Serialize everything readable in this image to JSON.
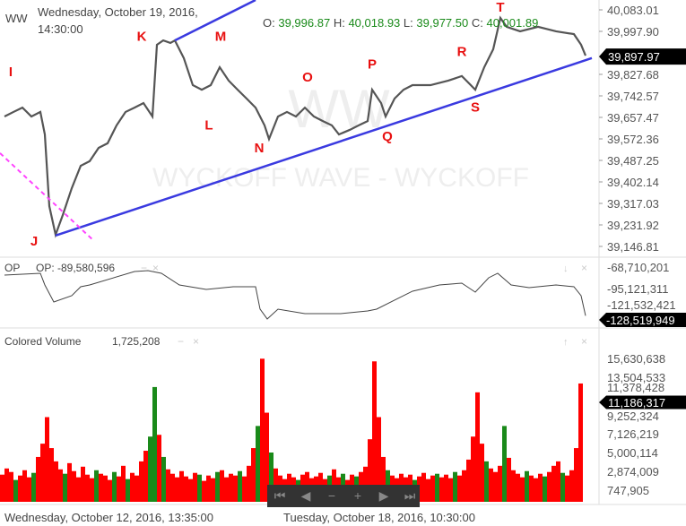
{
  "header": {
    "symbol": "WW",
    "date": "Wednesday, October 19, 2016,",
    "time": "14:30:00",
    "o_label": "O:",
    "o": "39,996.87",
    "h_label": "H:",
    "h": "40,018.93",
    "l_label": "L:",
    "l": "39,977.50",
    "c_label": "C:",
    "c": "40,001.89"
  },
  "watermark": {
    "big": "WW",
    "text": "WYCKOFF WAVE - WYCKOFF"
  },
  "colors": {
    "price": "#555555",
    "trend": "#3a3ae0",
    "dashed": "#ff44ff",
    "label": "#e81010",
    "up": "#1a8a1a",
    "down": "#ff0000",
    "values": "#1a8a1a"
  },
  "chart_data": [
    {
      "type": "line",
      "name": "WW",
      "ylim": [
        39146.81,
        40083.01
      ],
      "yticks": [
        "40,083.01",
        "39,997.90",
        "39,827.68",
        "39,742.57",
        "39,657.47",
        "39,572.36",
        "39,487.25",
        "39,402.14",
        "39,317.03",
        "39,231.92",
        "39,146.81"
      ],
      "last": "39,897.97",
      "points": [
        [
          1,
          39661
        ],
        [
          3,
          39679
        ],
        [
          5,
          39696
        ],
        [
          7,
          39661
        ],
        [
          9,
          39679
        ],
        [
          10,
          39590
        ],
        [
          11,
          39306
        ],
        [
          12.4,
          39193
        ],
        [
          14,
          39271
        ],
        [
          16,
          39377
        ],
        [
          18,
          39466
        ],
        [
          20,
          39484
        ],
        [
          22,
          39537
        ],
        [
          24,
          39555
        ],
        [
          26,
          39626
        ],
        [
          28,
          39679
        ],
        [
          30,
          39696
        ],
        [
          32,
          39714
        ],
        [
          34,
          39661
        ],
        [
          35,
          39945
        ],
        [
          36.4,
          39962
        ],
        [
          38,
          39952
        ],
        [
          39,
          39962
        ],
        [
          41,
          39892
        ],
        [
          43,
          39785
        ],
        [
          45,
          39767
        ],
        [
          47,
          39785
        ],
        [
          49,
          39856
        ],
        [
          51,
          39803
        ],
        [
          53,
          39767
        ],
        [
          55,
          39732
        ],
        [
          57,
          39696
        ],
        [
          59,
          39626
        ],
        [
          60,
          39572
        ],
        [
          62,
          39661
        ],
        [
          64,
          39679
        ],
        [
          66,
          39661
        ],
        [
          68,
          39696
        ],
        [
          70,
          39661
        ],
        [
          72,
          39643
        ],
        [
          74,
          39626
        ],
        [
          75.6,
          39590
        ],
        [
          78,
          39608
        ],
        [
          80,
          39626
        ],
        [
          82,
          39643
        ],
        [
          83,
          39767
        ],
        [
          85,
          39714
        ],
        [
          86,
          39661
        ],
        [
          88,
          39732
        ],
        [
          90,
          39767
        ],
        [
          92,
          39785
        ],
        [
          96,
          39785
        ],
        [
          100,
          39803
        ],
        [
          103,
          39821
        ],
        [
          105,
          39785
        ],
        [
          106,
          39767
        ],
        [
          108,
          39856
        ],
        [
          110,
          39927
        ],
        [
          111.6,
          40051
        ],
        [
          113,
          40016
        ],
        [
          116,
          39998
        ],
        [
          120,
          40016
        ],
        [
          124,
          39998
        ],
        [
          128,
          39987
        ],
        [
          129.6,
          39945
        ],
        [
          130.6,
          39902
        ]
      ],
      "annotations": [
        {
          "text": "I",
          "bar": 2.4,
          "price": 39820
        },
        {
          "text": "J",
          "bar": 7.6,
          "price": 39150
        },
        {
          "text": "K",
          "bar": 31.6,
          "price": 39960
        },
        {
          "text": "L",
          "bar": 46.6,
          "price": 39610
        },
        {
          "text": "M",
          "bar": 49.2,
          "price": 39960
        },
        {
          "text": "N",
          "bar": 57.8,
          "price": 39520
        },
        {
          "text": "O",
          "bar": 68.6,
          "price": 39800
        },
        {
          "text": "P",
          "bar": 83,
          "price": 39850
        },
        {
          "text": "Q",
          "bar": 86.4,
          "price": 39565
        },
        {
          "text": "R",
          "bar": 103,
          "price": 39900
        },
        {
          "text": "S",
          "bar": 106,
          "price": 39680
        },
        {
          "text": "T",
          "bar": 111.6,
          "price": 40085
        }
      ],
      "trendlines": [
        {
          "from": [
            12.4,
            39190
          ],
          "to": [
            132,
            39892
          ]
        },
        {
          "from": [
            39,
            39962
          ],
          "to": [
            57,
            40122
          ]
        }
      ],
      "dashed_line": {
        "from": [
          0,
          39516
        ],
        "to": [
          21,
          39168
        ]
      }
    },
    {
      "type": "line",
      "name": "OP",
      "title": "OP",
      "value_label": "OP: -89,580,596",
      "ylim_millions": [
        -68.71,
        -128.52
      ],
      "yticks": [
        "-68,710,201",
        "-95,121,311",
        "-121,532,421"
      ],
      "last": "-128,519,949",
      "points": [
        [
          1,
          -78.6
        ],
        [
          9,
          -76.4
        ],
        [
          10,
          -90.7
        ],
        [
          12,
          -111.6
        ],
        [
          16,
          -103.9
        ],
        [
          18,
          -92.9
        ],
        [
          20,
          -90.7
        ],
        [
          30,
          -74.2
        ],
        [
          33,
          -73.1
        ],
        [
          36,
          -76.4
        ],
        [
          40,
          -90.7
        ],
        [
          46,
          -96.2
        ],
        [
          52,
          -92.9
        ],
        [
          57,
          -92.9
        ],
        [
          58,
          -120.4
        ],
        [
          59.6,
          -132.5
        ],
        [
          62,
          -120.4
        ],
        [
          68,
          -125.9
        ],
        [
          76,
          -125.9
        ],
        [
          82,
          -122.6
        ],
        [
          84,
          -120.4
        ],
        [
          88,
          -109.4
        ],
        [
          92,
          -98.4
        ],
        [
          98,
          -90.7
        ],
        [
          103,
          -88.5
        ],
        [
          106,
          -99.5
        ],
        [
          109,
          -81.9
        ],
        [
          111,
          -76.4
        ],
        [
          114,
          -90.7
        ],
        [
          118,
          -94.0
        ],
        [
          124,
          -90.7
        ],
        [
          128,
          -92.9
        ],
        [
          129.6,
          -103.9
        ],
        [
          130.6,
          -128.5
        ]
      ]
    },
    {
      "type": "bar",
      "name": "Colored Volume",
      "title": "Colored Volume",
      "value_label": "1,725,208",
      "ylim_millions": [
        0.747905,
        15.630638
      ],
      "yticks": [
        "15,630,638",
        "13,504,533",
        "11,378,428",
        "9,252,324",
        "7,126,219",
        "5,000,114",
        "2,874,009",
        "747,905"
      ],
      "last": "11,186,317",
      "values_millions": [
        2.5,
        3.2,
        2.8,
        1.9,
        2.4,
        3.0,
        2.2,
        2.7,
        4.5,
        6.0,
        9.0,
        5.5,
        4.0,
        3.1,
        2.6,
        3.8,
        2.9,
        2.2,
        3.4,
        2.5,
        2.1,
        3.0,
        2.6,
        2.4,
        1.9,
        2.8,
        2.3,
        3.5,
        2.0,
        2.7,
        2.4,
        4.0,
        5.2,
        6.8,
        12.4,
        7.0,
        4.5,
        3.1,
        2.6,
        2.2,
        2.9,
        2.3,
        2.0,
        2.7,
        2.5,
        1.8,
        2.4,
        2.1,
        2.8,
        3.0,
        2.2,
        2.6,
        2.4,
        2.9,
        2.3,
        3.5,
        5.5,
        8.0,
        15.6,
        9.5,
        5.0,
        3.2,
        2.4,
        2.0,
        2.6,
        2.2,
        1.9,
        2.5,
        2.8,
        2.1,
        2.3,
        2.7,
        2.0,
        2.4,
        3.1,
        2.2,
        2.6,
        1.9,
        2.5,
        2.3,
        2.8,
        3.4,
        6.5,
        15.3,
        9.0,
        4.5,
        3.0,
        2.4,
        2.1,
        2.6,
        2.2,
        2.5,
        1.9,
        2.3,
        2.7,
        2.0,
        2.4,
        2.6,
        2.2,
        2.5,
        2.1,
        2.8,
        2.4,
        3.0,
        4.2,
        6.8,
        11.8,
        6.0,
        4.0,
        3.2,
        2.8,
        3.5,
        8.0,
        4.4,
        3.0,
        2.6,
        2.2,
        2.9,
        2.4,
        2.1,
        2.6,
        2.3,
        2.8,
        3.5,
        4.0,
        2.7,
        2.4,
        3.0,
        5.5,
        12.8
      ],
      "colors": "RRRGRRRGRRRRRRGRRRRRRGRRRGRRGRRRRGGRGRRRRRRRGRRRGRRRRGRRRGRRGRRRRRGRRRRRRGRRGRRGRRRRRRGRRRRRGRRRRGRRRGRRRRRRGRRRGRRRRGRRRGRRRGRRRR"
    }
  ],
  "xaxis": {
    "labels": [
      "Wednesday, October 12, 2016, 13:35:00",
      "Tuesday, October 18, 2016, 10:30:00"
    ]
  },
  "nav": [
    "first",
    "prev",
    "zoom-out",
    "zoom-in",
    "next",
    "last"
  ]
}
